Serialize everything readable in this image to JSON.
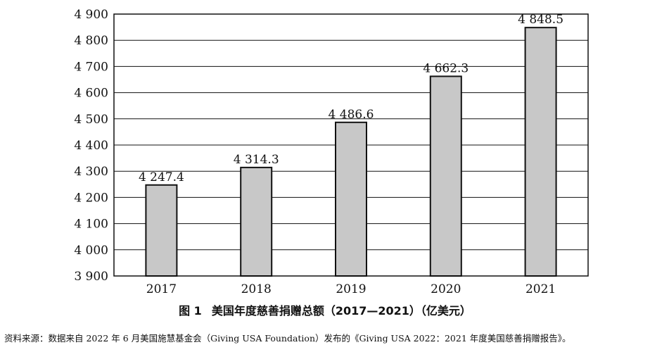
{
  "chart_data": {
    "type": "bar",
    "categories": [
      "2017",
      "2018",
      "2019",
      "2020",
      "2021"
    ],
    "values": [
      4247.4,
      4314.3,
      4486.6,
      4662.3,
      4848.5
    ],
    "value_labels": [
      "4 247.4",
      "4 314.3",
      "4 486.6",
      "4 662.3",
      "4 848.5"
    ],
    "ylim": [
      3900,
      4900
    ],
    "yticks": [
      3900,
      4000,
      4100,
      4200,
      4300,
      4400,
      4500,
      4600,
      4700,
      4800,
      4900
    ],
    "ytick_labels": [
      "3 900",
      "4 000",
      "4 100",
      "4 200",
      "4 300",
      "4 400",
      "4 500",
      "4 600",
      "4 700",
      "4 800",
      "4 900"
    ],
    "grid": "horizontal",
    "bar_color": "#c8c8c8",
    "bar_edge_color": "#111111"
  },
  "caption": {
    "figure_no": "图 1",
    "title": "美国年度慈善捐赠总额（2017—2021）（亿美元）"
  },
  "source_note": "资料来源：数据来自 2022 年 6 月美国施慧基金会（Giving USA Foundation）发布的《Giving USA 2022：2021 年度美国慈善捐赠报告》。"
}
